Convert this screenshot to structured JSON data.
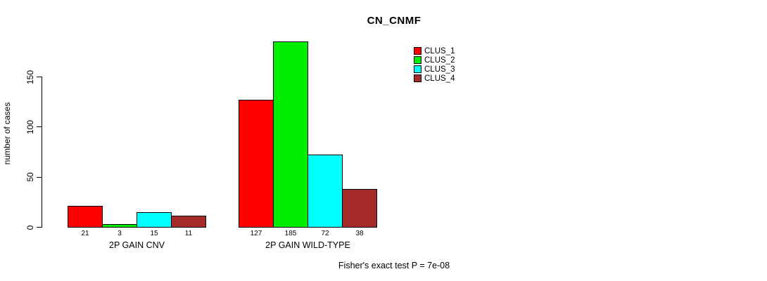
{
  "title": "CN_CNMF",
  "ylabel": "number of cases",
  "footer": "Fisher's exact test P = 7e-08",
  "chart_data": {
    "type": "bar",
    "grouped": true,
    "title": "CN_CNMF",
    "xlabel": "",
    "ylabel": "number of cases",
    "categories": [
      "2P GAIN CNV",
      "2P GAIN WILD-TYPE"
    ],
    "series": [
      {
        "name": "CLUS_1",
        "color": "#ff0000",
        "values": [
          21,
          127
        ]
      },
      {
        "name": "CLUS_2",
        "color": "#00ee00",
        "values": [
          3,
          185
        ]
      },
      {
        "name": "CLUS_3",
        "color": "#00ffff",
        "values": [
          15,
          72
        ]
      },
      {
        "name": "CLUS_4",
        "color": "#a52a2a",
        "values": [
          11,
          38
        ]
      }
    ],
    "bar_value_labels": [
      [
        21,
        3,
        15,
        11
      ],
      [
        127,
        185,
        72,
        38
      ]
    ],
    "yticks": [
      0,
      50,
      100,
      150
    ],
    "ylim": [
      0,
      190
    ],
    "grid": false,
    "legend_position": "top-right-inside",
    "annotation": "Fisher's exact test P = 7e-08",
    "axis_color": "#000000",
    "background_color": "#ffffff"
  }
}
